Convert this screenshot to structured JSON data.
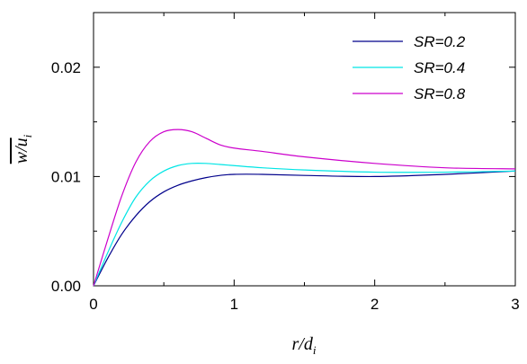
{
  "chart_data": {
    "type": "line",
    "xlabel": "r/d",
    "xlabel_sub": "i",
    "ylabel": "w/u",
    "ylabel_sub": "i",
    "xlim": [
      0,
      3
    ],
    "ylim": [
      0,
      0.025
    ],
    "xticks": [
      0,
      1,
      2,
      3
    ],
    "xtick_labels": [
      "0",
      "1",
      "2",
      "3"
    ],
    "yticks": [
      0,
      0.01,
      0.02
    ],
    "ytick_labels": [
      "0.00",
      "0.01",
      "0.02"
    ],
    "grid": false,
    "legend_position": "top-right",
    "series": [
      {
        "name": "SR=0.2",
        "color": "#00008B",
        "x": [
          0,
          0.1,
          0.2,
          0.3,
          0.4,
          0.5,
          0.6,
          0.7,
          0.8,
          0.9,
          1.0,
          1.2,
          1.5,
          2.0,
          2.5,
          3.0
        ],
        "y": [
          0,
          0.0025,
          0.0047,
          0.0064,
          0.0077,
          0.0086,
          0.0092,
          0.0096,
          0.0099,
          0.0101,
          0.0102,
          0.0102,
          0.0101,
          0.01,
          0.0102,
          0.0105
        ]
      },
      {
        "name": "SR=0.4",
        "color": "#00E5E5",
        "x": [
          0,
          0.1,
          0.2,
          0.3,
          0.4,
          0.5,
          0.6,
          0.7,
          0.8,
          0.9,
          1.0,
          1.2,
          1.5,
          2.0,
          2.5,
          3.0
        ],
        "y": [
          0,
          0.003,
          0.0058,
          0.0081,
          0.0096,
          0.0105,
          0.011,
          0.0112,
          0.0112,
          0.0111,
          0.011,
          0.0108,
          0.0106,
          0.0104,
          0.0104,
          0.0105
        ]
      },
      {
        "name": "SR=0.8",
        "color": "#CC00CC",
        "x": [
          0,
          0.1,
          0.2,
          0.3,
          0.4,
          0.5,
          0.6,
          0.7,
          0.8,
          0.9,
          1.0,
          1.2,
          1.5,
          2.0,
          2.5,
          3.0
        ],
        "y": [
          0,
          0.0042,
          0.0082,
          0.0113,
          0.0132,
          0.0141,
          0.0143,
          0.0141,
          0.0135,
          0.0129,
          0.0126,
          0.0123,
          0.0118,
          0.0112,
          0.0108,
          0.0107
        ]
      }
    ]
  }
}
